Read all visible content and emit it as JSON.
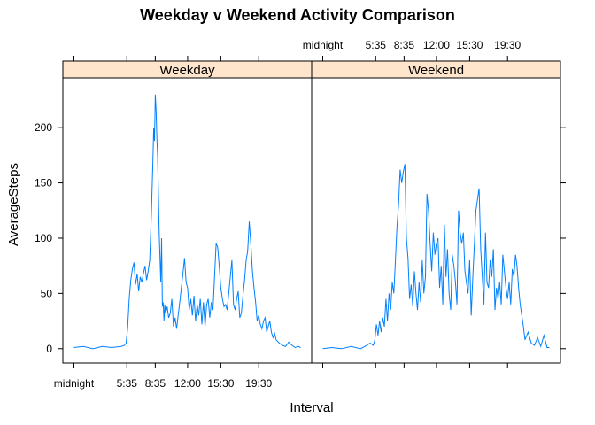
{
  "chart_data": {
    "type": "line",
    "title": "Weekday v Weekend Activity Comparison",
    "xlabel": "Interval",
    "ylabel": "AverageSteps",
    "x_unit": "minutes after midnight",
    "xlim": [
      -70,
      1505
    ],
    "ylim": [
      -13,
      245
    ],
    "x_ticks": [
      {
        "value": 0,
        "label": "midnight"
      },
      {
        "value": 335,
        "label": "5:35"
      },
      {
        "value": 515,
        "label": "8:35"
      },
      {
        "value": 720,
        "label": "12:00"
      },
      {
        "value": 930,
        "label": "15:30"
      },
      {
        "value": 1170,
        "label": "19:30"
      }
    ],
    "y_ticks": [
      0,
      50,
      100,
      150,
      200
    ],
    "line_color": "#0080ff",
    "strip_color": "#ffe5cc",
    "panels": [
      {
        "name": "Weekday",
        "x": [
          0,
          60,
          120,
          180,
          240,
          300,
          320,
          330,
          340,
          350,
          360,
          370,
          380,
          390,
          400,
          410,
          420,
          430,
          440,
          450,
          460,
          470,
          480,
          490,
          500,
          505,
          510,
          515,
          520,
          525,
          530,
          540,
          550,
          555,
          560,
          565,
          570,
          575,
          580,
          590,
          600,
          610,
          620,
          630,
          640,
          650,
          660,
          670,
          680,
          690,
          700,
          710,
          720,
          730,
          740,
          750,
          760,
          770,
          780,
          790,
          800,
          810,
          820,
          830,
          840,
          850,
          860,
          870,
          880,
          890,
          900,
          910,
          920,
          930,
          940,
          950,
          960,
          970,
          980,
          990,
          1000,
          1010,
          1020,
          1030,
          1040,
          1050,
          1060,
          1070,
          1080,
          1090,
          1100,
          1110,
          1120,
          1130,
          1140,
          1150,
          1160,
          1170,
          1180,
          1190,
          1200,
          1210,
          1220,
          1230,
          1240,
          1250,
          1260,
          1270,
          1280,
          1300,
          1320,
          1340,
          1360,
          1380,
          1400,
          1420,
          1435
        ],
        "y": [
          1,
          2,
          0,
          2,
          1,
          2,
          3,
          5,
          18,
          45,
          62,
          72,
          78,
          58,
          68,
          52,
          65,
          60,
          68,
          75,
          62,
          70,
          80,
          120,
          170,
          200,
          188,
          230,
          215,
          190,
          175,
          105,
          60,
          100,
          38,
          42,
          25,
          40,
          32,
          38,
          28,
          32,
          45,
          20,
          28,
          18,
          30,
          42,
          55,
          68,
          82,
          60,
          55,
          35,
          45,
          30,
          48,
          25,
          40,
          30,
          45,
          22,
          42,
          20,
          40,
          45,
          28,
          42,
          35,
          65,
          95,
          92,
          75,
          55,
          45,
          38,
          40,
          35,
          50,
          65,
          80,
          40,
          35,
          45,
          52,
          28,
          32,
          48,
          62,
          80,
          88,
          115,
          95,
          70,
          55,
          42,
          25,
          30,
          22,
          18,
          25,
          28,
          15,
          20,
          25,
          15,
          10,
          14,
          8,
          5,
          3,
          2,
          6,
          3,
          1,
          2,
          1
        ]
      },
      {
        "name": "Weekend",
        "x": [
          0,
          60,
          120,
          180,
          240,
          280,
          300,
          320,
          330,
          340,
          350,
          360,
          370,
          380,
          390,
          400,
          410,
          420,
          430,
          440,
          450,
          460,
          470,
          480,
          490,
          500,
          510,
          520,
          530,
          540,
          550,
          560,
          570,
          580,
          590,
          600,
          610,
          620,
          630,
          640,
          650,
          660,
          670,
          680,
          690,
          700,
          710,
          720,
          730,
          740,
          750,
          760,
          770,
          780,
          790,
          800,
          810,
          820,
          830,
          840,
          850,
          860,
          870,
          880,
          890,
          900,
          910,
          920,
          930,
          940,
          950,
          960,
          970,
          980,
          990,
          1000,
          1010,
          1020,
          1030,
          1040,
          1050,
          1060,
          1070,
          1080,
          1090,
          1100,
          1110,
          1120,
          1130,
          1140,
          1150,
          1160,
          1170,
          1180,
          1190,
          1200,
          1210,
          1220,
          1230,
          1240,
          1250,
          1260,
          1270,
          1280,
          1300,
          1320,
          1340,
          1360,
          1380,
          1400,
          1420,
          1435
        ],
        "y": [
          0,
          1,
          0,
          2,
          0,
          3,
          5,
          3,
          8,
          22,
          12,
          25,
          15,
          28,
          20,
          45,
          25,
          50,
          35,
          60,
          50,
          80,
          110,
          130,
          162,
          150,
          160,
          167,
          100,
          82,
          45,
          58,
          38,
          70,
          50,
          35,
          60,
          42,
          80,
          50,
          65,
          140,
          125,
          95,
          70,
          105,
          85,
          95,
          100,
          55,
          75,
          40,
          112,
          65,
          90,
          50,
          35,
          85,
          75,
          60,
          40,
          125,
          105,
          95,
          105,
          70,
          60,
          50,
          80,
          30,
          65,
          95,
          125,
          135,
          145,
          90,
          65,
          40,
          105,
          60,
          55,
          80,
          65,
          90,
          35,
          55,
          45,
          60,
          40,
          85,
          70,
          55,
          45,
          60,
          40,
          72,
          65,
          85,
          75,
          55,
          40,
          30,
          20,
          8,
          15,
          5,
          3,
          10,
          2,
          12,
          1,
          1
        ]
      }
    ]
  }
}
